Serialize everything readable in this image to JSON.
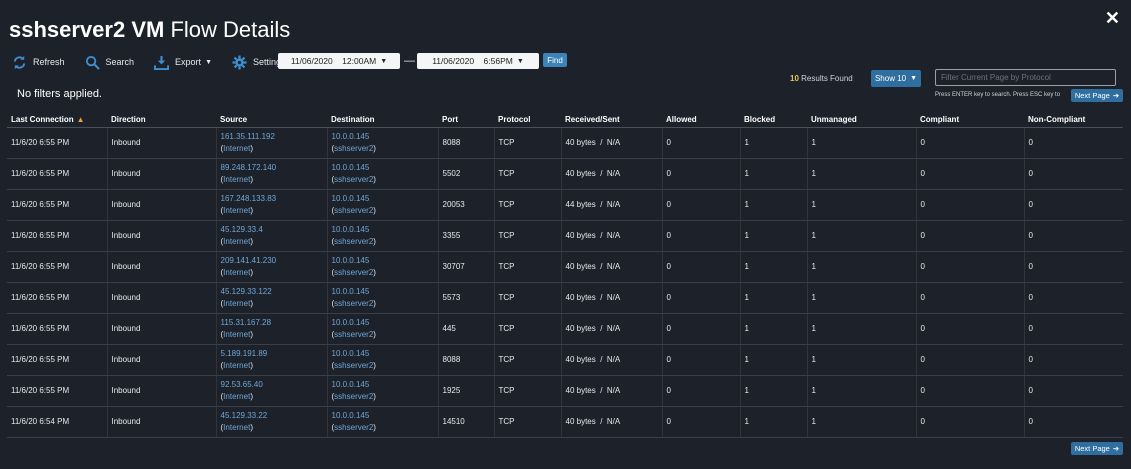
{
  "header": {
    "title_bold": "sshserver2 VM",
    "title_light": "Flow Details"
  },
  "toolbar": {
    "refresh": "Refresh",
    "search": "Search",
    "export": "Export",
    "settings": "Settings",
    "find": "Find"
  },
  "dates": {
    "from": "11/06/2020    12:00AM",
    "to": "11/06/2020    6:56PM",
    "separator": "—"
  },
  "filters_status": "No filters applied.",
  "results": {
    "count": "10",
    "label": "Results Found",
    "show": "Show 10"
  },
  "filter": {
    "placeholder": "Filter Current Page by Protocol",
    "hint": "Press ENTER key to search. Press ESC key to",
    "next_page": "Next Page"
  },
  "columns": [
    "Last Connection",
    "Direction",
    "Source",
    "Destination",
    "Port",
    "Protocol",
    "Received/Sent",
    "Allowed",
    "Blocked",
    "Unmanaged",
    "Compliant",
    "Non-Compliant"
  ],
  "rows": [
    {
      "last": "11/6/20 6:55 PM",
      "dir": "Inbound",
      "src_ip": "161.35.111.192",
      "src_sub": "Internet",
      "dst_ip": "10.0.0.145",
      "dst_sub": "sshserver2",
      "port": "8088",
      "proto": "TCP",
      "rs": "40 bytes  /  N/A",
      "allowed": "0",
      "blocked": "1",
      "unmanaged": "1",
      "compliant": "0",
      "noncompliant": "0"
    },
    {
      "last": "11/6/20 6:55 PM",
      "dir": "Inbound",
      "src_ip": "89.248.172.140",
      "src_sub": "Internet",
      "dst_ip": "10.0.0.145",
      "dst_sub": "sshserver2",
      "port": "5502",
      "proto": "TCP",
      "rs": "40 bytes  /  N/A",
      "allowed": "0",
      "blocked": "1",
      "unmanaged": "1",
      "compliant": "0",
      "noncompliant": "0"
    },
    {
      "last": "11/6/20 6:55 PM",
      "dir": "Inbound",
      "src_ip": "167.248.133.83",
      "src_sub": "Internet",
      "dst_ip": "10.0.0.145",
      "dst_sub": "sshserver2",
      "port": "20053",
      "proto": "TCP",
      "rs": "44 bytes  /  N/A",
      "allowed": "0",
      "blocked": "1",
      "unmanaged": "1",
      "compliant": "0",
      "noncompliant": "0"
    },
    {
      "last": "11/6/20 6:55 PM",
      "dir": "Inbound",
      "src_ip": "45.129.33.4",
      "src_sub": "Internet",
      "dst_ip": "10.0.0.145",
      "dst_sub": "sshserver2",
      "port": "3355",
      "proto": "TCP",
      "rs": "40 bytes  /  N/A",
      "allowed": "0",
      "blocked": "1",
      "unmanaged": "1",
      "compliant": "0",
      "noncompliant": "0"
    },
    {
      "last": "11/6/20 6:55 PM",
      "dir": "Inbound",
      "src_ip": "209.141.41.230",
      "src_sub": "Internet",
      "dst_ip": "10.0.0.145",
      "dst_sub": "sshserver2",
      "port": "30707",
      "proto": "TCP",
      "rs": "40 bytes  /  N/A",
      "allowed": "0",
      "blocked": "1",
      "unmanaged": "1",
      "compliant": "0",
      "noncompliant": "0"
    },
    {
      "last": "11/6/20 6:55 PM",
      "dir": "Inbound",
      "src_ip": "45.129.33.122",
      "src_sub": "Internet",
      "dst_ip": "10.0.0.145",
      "dst_sub": "sshserver2",
      "port": "5573",
      "proto": "TCP",
      "rs": "40 bytes  /  N/A",
      "allowed": "0",
      "blocked": "1",
      "unmanaged": "1",
      "compliant": "0",
      "noncompliant": "0"
    },
    {
      "last": "11/6/20 6:55 PM",
      "dir": "Inbound",
      "src_ip": "115.31.167.28",
      "src_sub": "Internet",
      "dst_ip": "10.0.0.145",
      "dst_sub": "sshserver2",
      "port": "445",
      "proto": "TCP",
      "rs": "40 bytes  /  N/A",
      "allowed": "0",
      "blocked": "1",
      "unmanaged": "1",
      "compliant": "0",
      "noncompliant": "0"
    },
    {
      "last": "11/6/20 6:55 PM",
      "dir": "Inbound",
      "src_ip": "5.189.191.89",
      "src_sub": "Internet",
      "dst_ip": "10.0.0.145",
      "dst_sub": "sshserver2",
      "port": "8088",
      "proto": "TCP",
      "rs": "40 bytes  /  N/A",
      "allowed": "0",
      "blocked": "1",
      "unmanaged": "1",
      "compliant": "0",
      "noncompliant": "0"
    },
    {
      "last": "11/6/20 6:55 PM",
      "dir": "Inbound",
      "src_ip": "92.53.65.40",
      "src_sub": "Internet",
      "dst_ip": "10.0.0.145",
      "dst_sub": "sshserver2",
      "port": "1925",
      "proto": "TCP",
      "rs": "40 bytes  /  N/A",
      "allowed": "0",
      "blocked": "1",
      "unmanaged": "1",
      "compliant": "0",
      "noncompliant": "0"
    },
    {
      "last": "11/6/20 6:54 PM",
      "dir": "Inbound",
      "src_ip": "45.129.33.22",
      "src_sub": "Internet",
      "dst_ip": "10.0.0.145",
      "dst_sub": "sshserver2",
      "port": "14510",
      "proto": "TCP",
      "rs": "40 bytes  /  N/A",
      "allowed": "0",
      "blocked": "1",
      "unmanaged": "1",
      "compliant": "0",
      "noncompliant": "0"
    }
  ],
  "colors": {
    "background": "#1d222a",
    "accent": "#2f6f9f",
    "link": "#6fa6d6",
    "count": "#e9c25a"
  },
  "icons": {
    "refresh": "refresh-icon",
    "search": "search-icon",
    "export": "download-icon",
    "settings": "gear-icon",
    "close": "close-icon"
  }
}
